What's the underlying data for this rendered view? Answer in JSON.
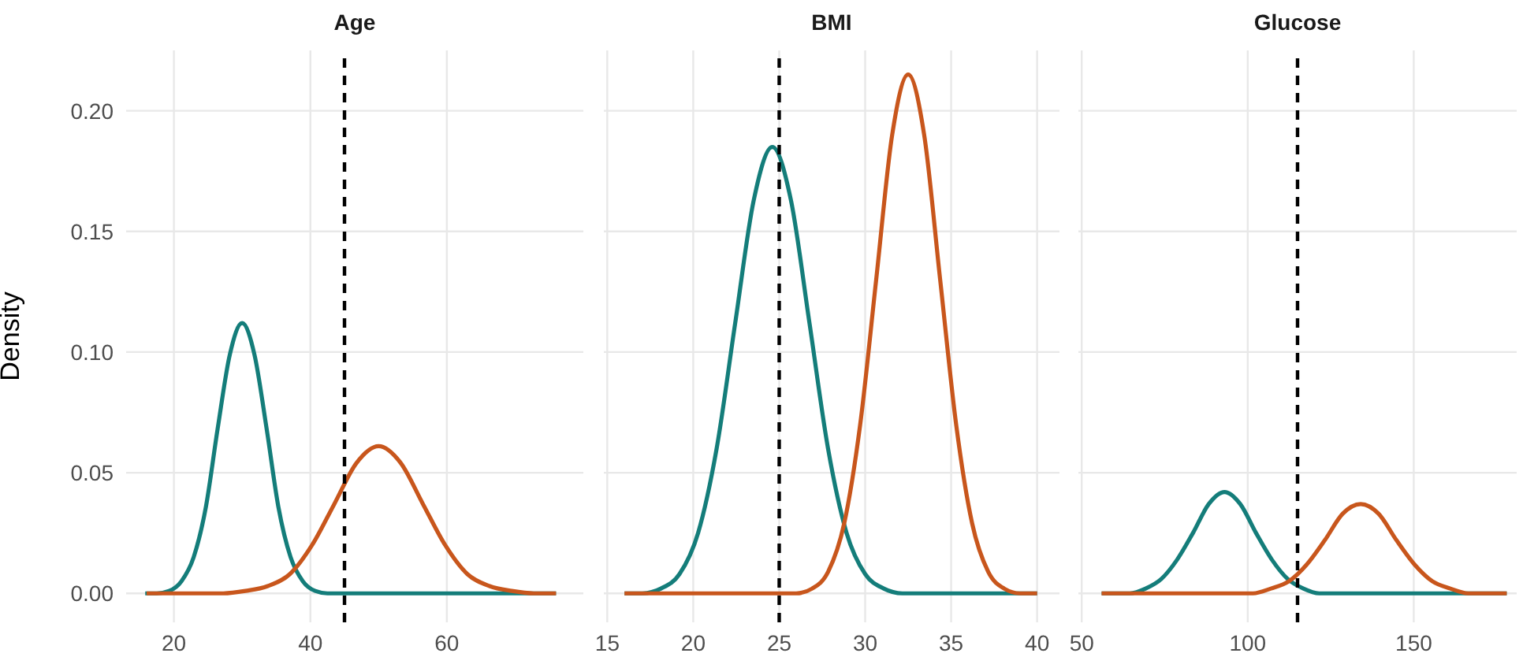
{
  "chart_data": [
    {
      "type": "line",
      "title": "Age",
      "ylabel": "Density",
      "xlim": [
        13,
        80
      ],
      "xticks": [
        20,
        40,
        60
      ],
      "ylim": [
        -0.012,
        0.225
      ],
      "yticks": [
        {
          "value": 0,
          "label": "0.00"
        },
        {
          "value": 0.05,
          "label": "0.05"
        },
        {
          "value": 0.1,
          "label": "0.10"
        },
        {
          "value": 0.15,
          "label": "0.15"
        },
        {
          "value": 0.2,
          "label": "0.20"
        }
      ],
      "grid": true,
      "legend": false,
      "marker": "none",
      "line_style": "solid",
      "series": [
        {
          "color": "#147d7a",
          "x": [
            15.8,
            17.5,
            19.3,
            21.1,
            22.9,
            24.7,
            26.4,
            28.2,
            30,
            31.8,
            33.6,
            35.3,
            37.1,
            38.9,
            40.7,
            42.5,
            44.2,
            76
          ],
          "values": [
            0,
            0,
            0.001,
            0.005,
            0.015,
            0.036,
            0.068,
            0.099,
            0.112,
            0.099,
            0.068,
            0.036,
            0.015,
            0.005,
            0.001,
            0,
            0,
            0
          ]
        },
        {
          "color": "#c8561c",
          "x": [
            16,
            24,
            27.25,
            30.5,
            33.75,
            37,
            40.25,
            43.5,
            46.75,
            50,
            53.25,
            56.5,
            59.75,
            63,
            66.25,
            69.5,
            72.75,
            76
          ],
          "values": [
            0,
            0,
            0,
            0.001,
            0.003,
            0.008,
            0.02,
            0.037,
            0.054,
            0.061,
            0.054,
            0.037,
            0.02,
            0.008,
            0.003,
            0.001,
            0,
            0
          ]
        }
      ],
      "ref_lines": [
        {
          "axis": "x",
          "value": 45,
          "color": "#000000",
          "line_style": "dashed"
        }
      ]
    },
    {
      "type": "line",
      "title": "BMI",
      "xlim": [
        14.8,
        41.3
      ],
      "xticks": [
        15,
        20,
        25,
        30,
        35,
        40
      ],
      "ylim": [
        -0.012,
        0.225
      ],
      "yticks": [
        0,
        0.05,
        0.1,
        0.15,
        0.2
      ],
      "tick_labels": "x",
      "grid": true,
      "legend": false,
      "marker": "none",
      "line_style": "solid",
      "series": [
        {
          "color": "#147d7a",
          "x": [
            16,
            17.04,
            18.12,
            19.2,
            20.28,
            21.36,
            22.44,
            23.52,
            24.6,
            25.68,
            26.76,
            27.84,
            28.92,
            30,
            31.08,
            32.16,
            33.24,
            40
          ],
          "values": [
            0,
            0,
            0.002,
            0.008,
            0.025,
            0.06,
            0.112,
            0.163,
            0.185,
            0.163,
            0.112,
            0.06,
            0.025,
            0.008,
            0.002,
            0,
            0,
            0
          ]
        },
        {
          "color": "#c8561c",
          "x": [
            16,
            25.06,
            25.99,
            26.92,
            27.85,
            28.78,
            29.71,
            30.64,
            31.57,
            32.5,
            33.43,
            34.36,
            35.29,
            36.22,
            37.15,
            38.08,
            39.01,
            40
          ],
          "values": [
            0,
            0,
            0,
            0.002,
            0.009,
            0.029,
            0.07,
            0.13,
            0.19,
            0.215,
            0.19,
            0.13,
            0.07,
            0.029,
            0.009,
            0.002,
            0,
            0
          ]
        }
      ],
      "ref_lines": [
        {
          "axis": "x",
          "value": 25,
          "color": "#000000",
          "line_style": "dashed"
        }
      ]
    },
    {
      "type": "line",
      "title": "Glucose",
      "xlim": [
        49,
        181
      ],
      "xticks": [
        50,
        100,
        150
      ],
      "ylim": [
        -0.012,
        0.225
      ],
      "yticks": [
        0,
        0.05,
        0.1,
        0.15,
        0.2
      ],
      "tick_labels": "x",
      "grid": true,
      "legend": false,
      "marker": "none",
      "line_style": "solid",
      "series": [
        {
          "color": "#147d7a",
          "x": [
            56,
            59.75,
            64.5,
            69.25,
            74,
            78.75,
            83.5,
            88.25,
            93,
            97.75,
            102.5,
            107.25,
            112,
            116.75,
            121.5,
            126.25,
            131,
            178
          ],
          "values": [
            0,
            0,
            0,
            0.002,
            0.006,
            0.014,
            0.025,
            0.037,
            0.042,
            0.037,
            0.025,
            0.014,
            0.006,
            0.002,
            0,
            0,
            0,
            0
          ]
        },
        {
          "color": "#c8561c",
          "x": [
            56,
            90.8,
            96.2,
            101.6,
            107,
            112.4,
            117.8,
            123.2,
            128.6,
            134,
            139.4,
            144.8,
            150.2,
            155.6,
            161,
            166.4,
            171.8,
            178
          ],
          "values": [
            0,
            0,
            0,
            0,
            0.002,
            0.005,
            0.012,
            0.022,
            0.033,
            0.037,
            0.033,
            0.022,
            0.012,
            0.005,
            0.002,
            0,
            0,
            0
          ]
        }
      ],
      "ref_lines": [
        {
          "axis": "x",
          "value": 115,
          "color": "#000000",
          "line_style": "dashed"
        }
      ]
    }
  ]
}
